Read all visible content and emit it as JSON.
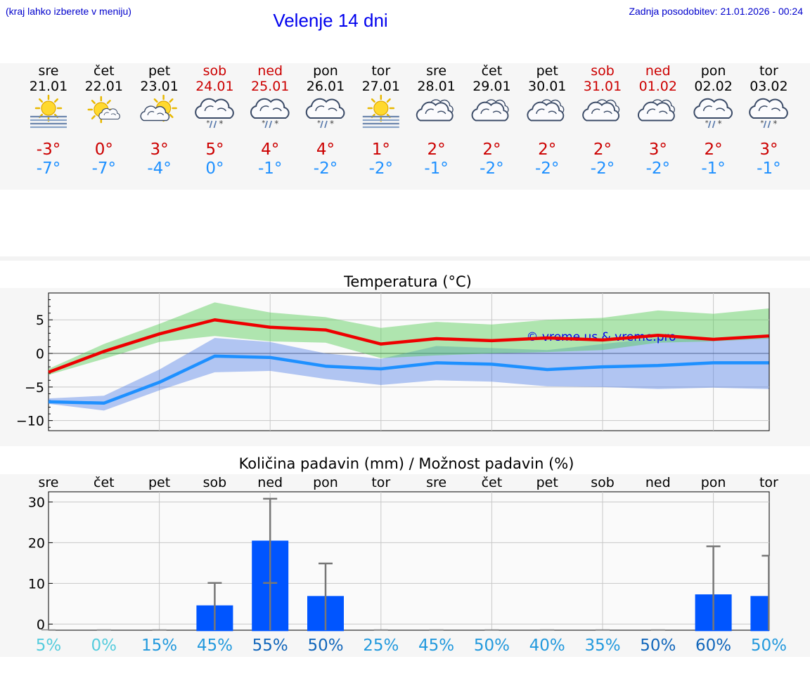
{
  "header": {
    "location_note": "(kraj lahko izberete v meniju)",
    "title": "Velenje 14 dni",
    "last_update": "Zadnja posodobitev: 21.01.2026 - 00:24"
  },
  "colors": {
    "weekend": "#cc0000",
    "weekday": "#000000",
    "max_temp": "#cc0000",
    "min_temp": "#1e90ff",
    "bar": "#0055ff"
  },
  "days": [
    {
      "day": "sre",
      "date": "21.01",
      "icon": "sun-fog-icon",
      "max": "-3°",
      "min": "-7°",
      "weekend": false
    },
    {
      "day": "čet",
      "date": "22.01",
      "icon": "sun-small-cloud-icon",
      "max": "0°",
      "min": "-7°",
      "weekend": false
    },
    {
      "day": "pet",
      "date": "23.01",
      "icon": "sun-cloud-icon",
      "max": "3°",
      "min": "-4°",
      "weekend": false
    },
    {
      "day": "sob",
      "date": "24.01",
      "icon": "cloud-sleet-icon",
      "max": "5°",
      "min": "0°",
      "weekend": true
    },
    {
      "day": "ned",
      "date": "25.01",
      "icon": "cloud-sleet-icon",
      "max": "4°",
      "min": "-1°",
      "weekend": true
    },
    {
      "day": "pon",
      "date": "26.01",
      "icon": "cloud-sleet-icon",
      "max": "4°",
      "min": "-2°",
      "weekend": false
    },
    {
      "day": "tor",
      "date": "27.01",
      "icon": "sun-fog-icon",
      "max": "1°",
      "min": "-2°",
      "weekend": false
    },
    {
      "day": "sre",
      "date": "28.01",
      "icon": "cloudy-icon",
      "max": "2°",
      "min": "-1°",
      "weekend": false
    },
    {
      "day": "čet",
      "date": "29.01",
      "icon": "cloudy-icon",
      "max": "2°",
      "min": "-2°",
      "weekend": false
    },
    {
      "day": "pet",
      "date": "30.01",
      "icon": "cloudy-icon",
      "max": "2°",
      "min": "-2°",
      "weekend": false
    },
    {
      "day": "sob",
      "date": "31.01",
      "icon": "cloudy-icon",
      "max": "2°",
      "min": "-2°",
      "weekend": true
    },
    {
      "day": "ned",
      "date": "01.02",
      "icon": "cloudy-icon",
      "max": "3°",
      "min": "-2°",
      "weekend": true
    },
    {
      "day": "pon",
      "date": "02.02",
      "icon": "cloud-sleet-icon",
      "max": "2°",
      "min": "-1°",
      "weekend": false
    },
    {
      "day": "tor",
      "date": "03.02",
      "icon": "cloud-sleet-icon",
      "max": "3°",
      "min": "-1°",
      "weekend": false
    }
  ],
  "chart_data": [
    {
      "type": "line",
      "title": "Temperatura (°C)",
      "watermark": "© vreme.us & vreme.pro",
      "ylim": [
        -11.5,
        9
      ],
      "yticks": [
        5,
        0,
        -5,
        -10
      ],
      "ytick_labels": [
        "5",
        "0",
        "−5",
        "−10"
      ],
      "x": [
        0,
        1,
        2,
        3,
        4,
        5,
        6,
        7,
        8,
        9,
        10,
        11,
        12,
        13
      ],
      "series": [
        {
          "name": "max",
          "values": [
            -2.8,
            0.3,
            2.9,
            5.0,
            3.9,
            3.5,
            1.4,
            2.2,
            1.9,
            2.3,
            2.0,
            2.7,
            2.1,
            2.6
          ]
        },
        {
          "name": "min",
          "values": [
            -7.2,
            -7.4,
            -4.3,
            -0.4,
            -0.6,
            -1.9,
            -2.3,
            -1.4,
            -1.6,
            -2.4,
            -2.0,
            -1.8,
            -1.4,
            -1.4
          ]
        }
      ],
      "bands": [
        {
          "name": "max-range",
          "low": [
            -3.2,
            -0.8,
            1.7,
            2.6,
            1.8,
            1.6,
            -0.7,
            -0.3,
            0.0,
            0.2,
            0.5,
            1.6,
            1.8,
            2.2
          ],
          "high": [
            -2.3,
            1.4,
            4.4,
            7.6,
            6.1,
            5.4,
            3.8,
            4.7,
            4.3,
            5.0,
            5.3,
            6.4,
            5.9,
            6.7
          ]
        },
        {
          "name": "min-range",
          "low": [
            -7.5,
            -8.5,
            -5.5,
            -2.8,
            -2.6,
            -3.8,
            -4.7,
            -4.0,
            -4.2,
            -4.9,
            -5.0,
            -5.3,
            -5.1,
            -5.3
          ],
          "high": [
            -6.7,
            -6.3,
            -2.4,
            2.3,
            1.7,
            0.0,
            -0.8,
            1.1,
            0.8,
            0.5,
            1.4,
            2.3,
            2.2,
            2.4
          ]
        }
      ]
    },
    {
      "type": "bar",
      "title": "Količina padavin (mm) / Možnost padavin (%)",
      "ylim": [
        -1.5,
        32.5
      ],
      "yticks": [
        30,
        20,
        10,
        0
      ],
      "ytick_labels": [
        "30",
        "20",
        "10",
        "0"
      ],
      "categories": [
        "sre",
        "čet",
        "pet",
        "sob",
        "ned",
        "pon",
        "tor",
        "sre",
        "čet",
        "pet",
        "sob",
        "ned",
        "pon",
        "tor"
      ],
      "values": [
        0,
        0,
        0,
        4.6,
        20.5,
        6.9,
        0,
        0,
        0,
        0,
        0,
        0,
        7.3,
        6.9
      ],
      "error_high": [
        0,
        0,
        0,
        10.1,
        30.8,
        14.9,
        0,
        0,
        0,
        0,
        0,
        0,
        19.1,
        16.8
      ],
      "error_low": [
        0,
        0,
        0,
        0,
        10.1,
        0,
        0,
        0,
        0,
        0,
        0,
        0,
        0,
        0
      ],
      "probability": [
        "5%",
        "0%",
        "15%",
        "45%",
        "55%",
        "50%",
        "25%",
        "45%",
        "50%",
        "40%",
        "35%",
        "50%",
        "60%",
        "50%"
      ],
      "probability_colors": [
        "#55ccdd",
        "#55ccdd",
        "#2299dd",
        "#2299dd",
        "#1166bb",
        "#1166bb",
        "#2299dd",
        "#2299dd",
        "#2299dd",
        "#2299dd",
        "#2299dd",
        "#1166bb",
        "#1166bb",
        "#2299dd"
      ]
    }
  ]
}
